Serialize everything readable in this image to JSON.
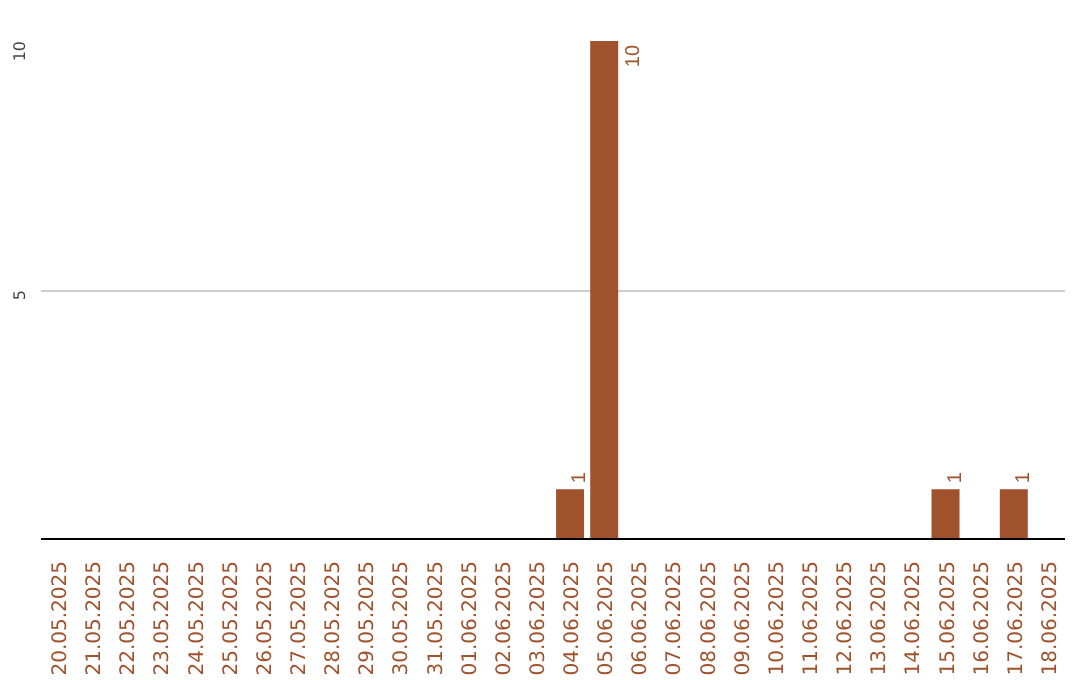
{
  "chart_data": {
    "type": "bar",
    "categories": [
      "20.05.2025",
      "21.05.2025",
      "22.05.2025",
      "23.05.2025",
      "24.05.2025",
      "25.05.2025",
      "26.05.2025",
      "27.05.2025",
      "28.05.2025",
      "29.05.2025",
      "30.05.2025",
      "31.05.2025",
      "01.06.2025",
      "02.06.2025",
      "03.06.2025",
      "04.06.2025",
      "05.06.2025",
      "06.06.2025",
      "07.06.2025",
      "08.06.2025",
      "09.06.2025",
      "10.06.2025",
      "11.06.2025",
      "12.06.2025",
      "13.06.2025",
      "14.06.2025",
      "15.06.2025",
      "16.06.2025",
      "17.06.2025",
      "18.06.2025"
    ],
    "values": [
      0,
      0,
      0,
      0,
      0,
      0,
      0,
      0,
      0,
      0,
      0,
      0,
      0,
      0,
      0,
      1,
      10,
      0,
      0,
      0,
      0,
      0,
      0,
      0,
      0,
      0,
      1,
      0,
      1,
      0
    ],
    "value_labels": [
      null,
      null,
      null,
      null,
      null,
      null,
      null,
      null,
      null,
      null,
      null,
      null,
      null,
      null,
      null,
      "1",
      "10",
      null,
      null,
      null,
      null,
      null,
      null,
      null,
      null,
      null,
      "1",
      null,
      "1",
      null
    ],
    "color": "#a0522d",
    "ylim": [
      0,
      10
    ],
    "yticks": [
      {
        "value": 0,
        "label": null
      },
      5,
      10
    ],
    "grid": "y"
  }
}
